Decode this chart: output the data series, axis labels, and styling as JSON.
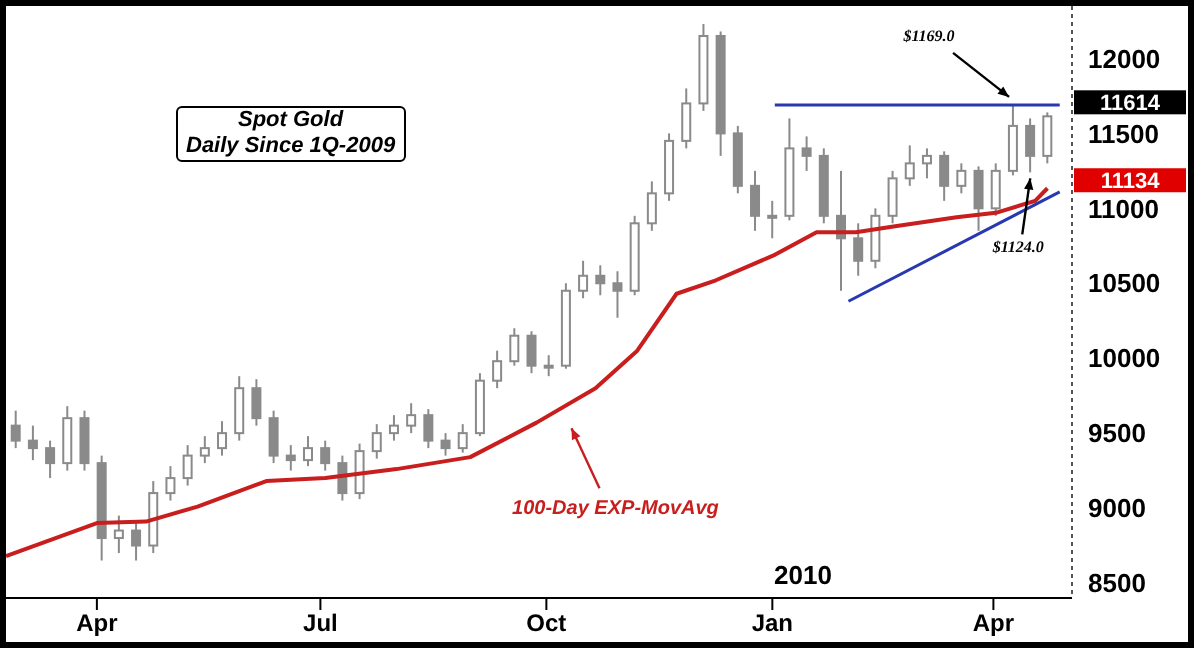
{
  "chart_data": {
    "type": "candlestick",
    "title": "Spot Gold",
    "subtitle": "Daily Since 1Q-2009",
    "x": [
      "2009-02-27",
      "2009-03-06",
      "2009-03-13",
      "2009-03-20",
      "2009-03-27",
      "2009-04-03",
      "2009-04-10",
      "2009-04-17",
      "2009-04-24",
      "2009-05-01",
      "2009-05-08",
      "2009-05-15",
      "2009-05-22",
      "2009-05-29",
      "2009-06-05",
      "2009-06-12",
      "2009-06-19",
      "2009-06-26",
      "2009-07-03",
      "2009-07-10",
      "2009-07-17",
      "2009-07-24",
      "2009-07-31",
      "2009-08-07",
      "2009-08-14",
      "2009-08-21",
      "2009-08-28",
      "2009-09-04",
      "2009-09-11",
      "2009-09-18",
      "2009-09-25",
      "2009-10-02",
      "2009-10-09",
      "2009-10-16",
      "2009-10-23",
      "2009-10-30",
      "2009-11-06",
      "2009-11-13",
      "2009-11-20",
      "2009-11-27",
      "2009-12-04",
      "2009-12-11",
      "2009-12-18",
      "2009-12-25",
      "2010-01-01",
      "2010-01-08",
      "2010-01-15",
      "2010-01-22",
      "2010-01-29",
      "2010-02-05",
      "2010-02-12",
      "2010-02-19",
      "2010-02-26",
      "2010-03-05",
      "2010-03-12",
      "2010-03-19",
      "2010-03-26",
      "2010-04-02",
      "2010-04-09",
      "2010-04-16",
      "2010-04-23"
    ],
    "ohlc": [
      [
        9550,
        9650,
        9400,
        9450
      ],
      [
        9450,
        9550,
        9320,
        9400
      ],
      [
        9400,
        9450,
        9200,
        9300
      ],
      [
        9300,
        9680,
        9250,
        9600
      ],
      [
        9600,
        9650,
        9250,
        9300
      ],
      [
        9300,
        9350,
        8650,
        8800
      ],
      [
        8800,
        8950,
        8700,
        8850
      ],
      [
        8850,
        8900,
        8650,
        8750
      ],
      [
        8750,
        9180,
        8700,
        9100
      ],
      [
        9100,
        9280,
        9050,
        9200
      ],
      [
        9200,
        9420,
        9150,
        9350
      ],
      [
        9350,
        9480,
        9300,
        9400
      ],
      [
        9400,
        9580,
        9350,
        9500
      ],
      [
        9500,
        9880,
        9450,
        9800
      ],
      [
        9800,
        9860,
        9550,
        9600
      ],
      [
        9600,
        9650,
        9300,
        9350
      ],
      [
        9350,
        9420,
        9250,
        9320
      ],
      [
        9320,
        9480,
        9280,
        9400
      ],
      [
        9400,
        9450,
        9250,
        9300
      ],
      [
        9300,
        9350,
        9050,
        9100
      ],
      [
        9100,
        9430,
        9060,
        9380
      ],
      [
        9380,
        9560,
        9330,
        9500
      ],
      [
        9500,
        9620,
        9450,
        9550
      ],
      [
        9550,
        9700,
        9500,
        9620
      ],
      [
        9620,
        9660,
        9400,
        9450
      ],
      [
        9450,
        9500,
        9350,
        9400
      ],
      [
        9400,
        9560,
        9370,
        9500
      ],
      [
        9500,
        9900,
        9480,
        9850
      ],
      [
        9850,
        10050,
        9800,
        9980
      ],
      [
        9980,
        10200,
        9950,
        10150
      ],
      [
        10150,
        10180,
        9900,
        9950
      ],
      [
        9950,
        10020,
        9880,
        9950
      ],
      [
        9950,
        10500,
        9930,
        10450
      ],
      [
        10450,
        10650,
        10400,
        10550
      ],
      [
        10550,
        10620,
        10420,
        10500
      ],
      [
        10500,
        10580,
        10270,
        10450
      ],
      [
        10450,
        10950,
        10420,
        10900
      ],
      [
        10900,
        11180,
        10850,
        11100
      ],
      [
        11100,
        11500,
        11050,
        11450
      ],
      [
        11450,
        11800,
        11400,
        11700
      ],
      [
        11700,
        12230,
        11650,
        12150
      ],
      [
        12150,
        12180,
        11350,
        11500
      ],
      [
        11500,
        11550,
        11100,
        11150
      ],
      [
        11150,
        11250,
        10850,
        10950
      ],
      [
        10950,
        11050,
        10800,
        10950
      ],
      [
        10950,
        11600,
        10920,
        11400
      ],
      [
        11400,
        11480,
        11250,
        11350
      ],
      [
        11350,
        11400,
        10900,
        10950
      ],
      [
        10950,
        11250,
        10450,
        10800
      ],
      [
        10800,
        10900,
        10550,
        10650
      ],
      [
        10650,
        11000,
        10600,
        10950
      ],
      [
        10950,
        11250,
        10900,
        11200
      ],
      [
        11200,
        11420,
        11150,
        11300
      ],
      [
        11300,
        11400,
        11200,
        11350
      ],
      [
        11350,
        11380,
        11050,
        11150
      ],
      [
        11150,
        11300,
        11100,
        11250
      ],
      [
        11250,
        11280,
        10850,
        11000
      ],
      [
        11000,
        11300,
        10950,
        11250
      ],
      [
        11250,
        11690,
        11220,
        11550
      ],
      [
        11550,
        11600,
        11240,
        11350
      ],
      [
        11350,
        11640,
        11300,
        11614
      ]
    ],
    "color": "#8a8a8a",
    "series": [
      {
        "type": "line",
        "name": "100-Day EXP-MovAvg",
        "color": "#c81e1e",
        "x": [
          "2009-02-23",
          "2009-04-01",
          "2009-04-21",
          "2009-05-12",
          "2009-06-09",
          "2009-07-03",
          "2009-08-01",
          "2009-08-31",
          "2009-09-27",
          "2009-10-21",
          "2009-11-07",
          "2009-11-23",
          "2009-12-09",
          "2010-01-02",
          "2010-01-19",
          "2010-02-04",
          "2010-02-20",
          "2010-03-17",
          "2010-04-02",
          "2010-04-18",
          "2010-04-23"
        ],
        "values": [
          8680,
          8900,
          8910,
          9010,
          9180,
          9200,
          9260,
          9340,
          9570,
          9800,
          10050,
          10430,
          10520,
          10690,
          10840,
          10840,
          10880,
          10940,
          10970,
          11050,
          11134
        ]
      },
      {
        "type": "line",
        "color": "#2838b0",
        "x": [
          "2010-01-02",
          "2010-04-28"
        ],
        "values": [
          11690,
          11690
        ]
      },
      {
        "type": "line",
        "color": "#2838b0",
        "x": [
          "2010-02-01",
          "2010-04-28"
        ],
        "values": [
          10380,
          11110
        ]
      }
    ],
    "xlim": [
      "2009-02-23",
      "2010-05-03"
    ],
    "xticks": [
      {
        "value": "2009-04-01",
        "label": "Apr"
      },
      {
        "value": "2009-07-01",
        "label": "Jul"
      },
      {
        "value": "2009-10-01",
        "label": "Oct"
      },
      {
        "value": "2010-01-01",
        "label": "Jan"
      },
      {
        "value": "2010-04-01",
        "label": "Apr"
      }
    ],
    "ylim": [
      8400,
      12350
    ],
    "yticks": [
      8500,
      9000,
      9500,
      10000,
      10500,
      11000,
      11500,
      12000
    ],
    "annotations": [
      {
        "text": "$1169.0",
        "x": "2010-04-09",
        "y": 11690
      },
      {
        "text": "$1124.0",
        "x": "2010-04-16",
        "y": 11240
      },
      {
        "text": "11614",
        "x": "2010-04-23",
        "y": 11614
      },
      {
        "text": "11134",
        "x": "2010-04-23",
        "y": 11134
      },
      "2010"
    ]
  }
}
